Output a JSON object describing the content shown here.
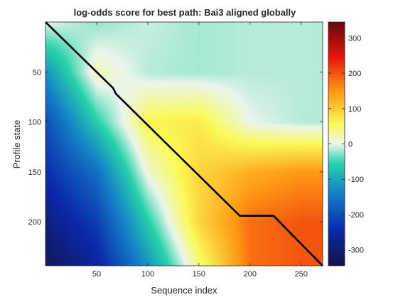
{
  "chart_data": {
    "type": "heatmap",
    "title": "log-odds score for best path: Bai3 aligned globally",
    "xlabel": "Sequence index",
    "ylabel": "Profile state",
    "xlim": [
      0,
      271
    ],
    "ylim": [
      0,
      244
    ],
    "y_direction": "reversed",
    "xticks": [
      50,
      100,
      150,
      200,
      250
    ],
    "yticks": [
      50,
      100,
      150,
      200
    ],
    "colorbar": {
      "location": "right",
      "ticks": [
        -300,
        -200,
        -100,
        0,
        100,
        200,
        300
      ],
      "range": [
        -345,
        345
      ],
      "colormap": "jet-diverging"
    },
    "grid": false,
    "best_path": {
      "x": [
        0,
        66,
        69,
        190,
        223,
        271
      ],
      "y": [
        0,
        66,
        72,
        194,
        194,
        244
      ]
    },
    "surface_sample": {
      "description_of_values": "approximate log-odds score at profile state (rows) vs sequence index (cols)",
      "x": [
        0,
        50,
        100,
        150,
        200,
        250,
        271
      ],
      "rows": [
        {
          "y": 0,
          "values": [
            0,
            -25,
            -10,
            -20,
            -15,
            -15,
            -15
          ]
        },
        {
          "y": 50,
          "values": [
            -120,
            20,
            -15,
            -20,
            -15,
            -15,
            -15
          ]
        },
        {
          "y": 100,
          "values": [
            -200,
            -60,
            60,
            70,
            0,
            -15,
            -15
          ]
        },
        {
          "y": 150,
          "values": [
            -240,
            -160,
            10,
            90,
            130,
            150,
            150
          ]
        },
        {
          "y": 200,
          "values": [
            -290,
            -220,
            -60,
            90,
            180,
            200,
            200
          ]
        },
        {
          "y": 244,
          "values": [
            -330,
            -260,
            -120,
            40,
            180,
            200,
            200
          ]
        }
      ]
    }
  }
}
